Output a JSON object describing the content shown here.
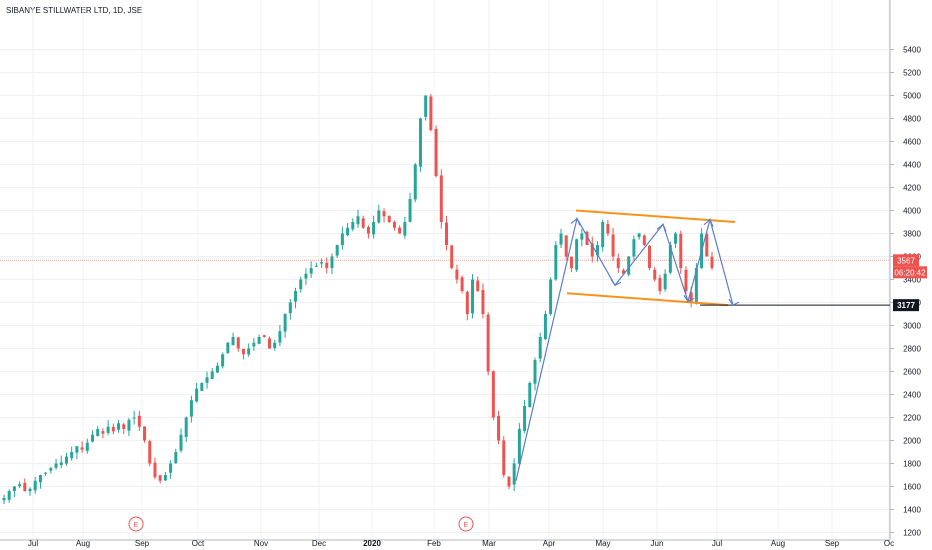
{
  "header": {
    "title": "SIBANYE STILLWATER LTD, 1D, JSE"
  },
  "colors": {
    "up": "#26a69a",
    "down": "#ef5350",
    "orange": "#f7931a",
    "blue": "#5b7fc7",
    "grid": "#eef0f3",
    "axis": "#b2b5be",
    "price_line": "#f4a59b",
    "label_red": "#ef5350",
    "label_dark": "#131722"
  },
  "markers": {
    "earnings_letter": "E"
  },
  "axis_labels": {
    "last_price": "3567",
    "countdown": "06:20:42",
    "level": "3177"
  },
  "chart_data": {
    "type": "candlestick",
    "title": "SIBANYE STILLWATER LTD, 1D, JSE",
    "ylim": [
      1100,
      5500
    ],
    "y_ticks": [
      1200,
      1400,
      1600,
      1800,
      2000,
      2200,
      2400,
      2600,
      2800,
      3000,
      3200,
      3400,
      3600,
      3800,
      4000,
      4200,
      4400,
      4600,
      4800,
      5000,
      5200,
      5400
    ],
    "x_ticks": [
      "Jul",
      "Aug",
      "Sep",
      "Oct",
      "Nov",
      "Dec",
      "2020",
      "Feb",
      "Mar",
      "Apr",
      "May",
      "Jun",
      "Jul",
      "Aug",
      "Sep",
      "Oc"
    ],
    "last_price": 3567,
    "level": 3177,
    "close_series": [
      1500,
      1560,
      1600,
      1620,
      1560,
      1580,
      1650,
      1700,
      1720,
      1760,
      1800,
      1810,
      1860,
      1900,
      1950,
      1920,
      1980,
      2050,
      2100,
      2060,
      2120,
      2080,
      2150,
      2100,
      2180,
      2200,
      2120,
      2000,
      1800,
      1680,
      1650,
      1700,
      1800,
      1900,
      2050,
      2200,
      2350,
      2450,
      2500,
      2550,
      2600,
      2650,
      2750,
      2850,
      2900,
      2800,
      2750,
      2800,
      2850,
      2900,
      2900,
      2800,
      2850,
      2950,
      3100,
      3200,
      3300,
      3400,
      3450,
      3500,
      3520,
      3550,
      3500,
      3600,
      3700,
      3800,
      3850,
      3900,
      3950,
      3850,
      3800,
      3900,
      4000,
      3950,
      3900,
      3850,
      3800,
      3900,
      4100,
      4400,
      4800,
      5000,
      4700,
      4300,
      3900,
      3700,
      3500,
      3400,
      3300,
      3100,
      3400,
      3300,
      3100,
      2600,
      2200,
      2000,
      1700,
      1600,
      1800,
      2100,
      2300,
      2500,
      2700,
      2900,
      3100,
      3400,
      3700,
      3800,
      3600,
      3500,
      3750,
      3800,
      3700,
      3600,
      3700,
      3900,
      3800,
      3600,
      3500,
      3450,
      3600,
      3750,
      3800,
      3700,
      3500,
      3400,
      3300,
      3450,
      3700,
      3800,
      3500,
      3300,
      3200,
      3500,
      3800,
      3600,
      3500
    ],
    "drawings": {
      "channel_top": [
        [
          4000,
          "Apr-end"
        ],
        [
          3900,
          "Jul-end"
        ]
      ],
      "channel_bottom": [
        [
          3300,
          "Apr-start"
        ],
        [
          3177,
          "Jul-end"
        ]
      ]
    }
  }
}
